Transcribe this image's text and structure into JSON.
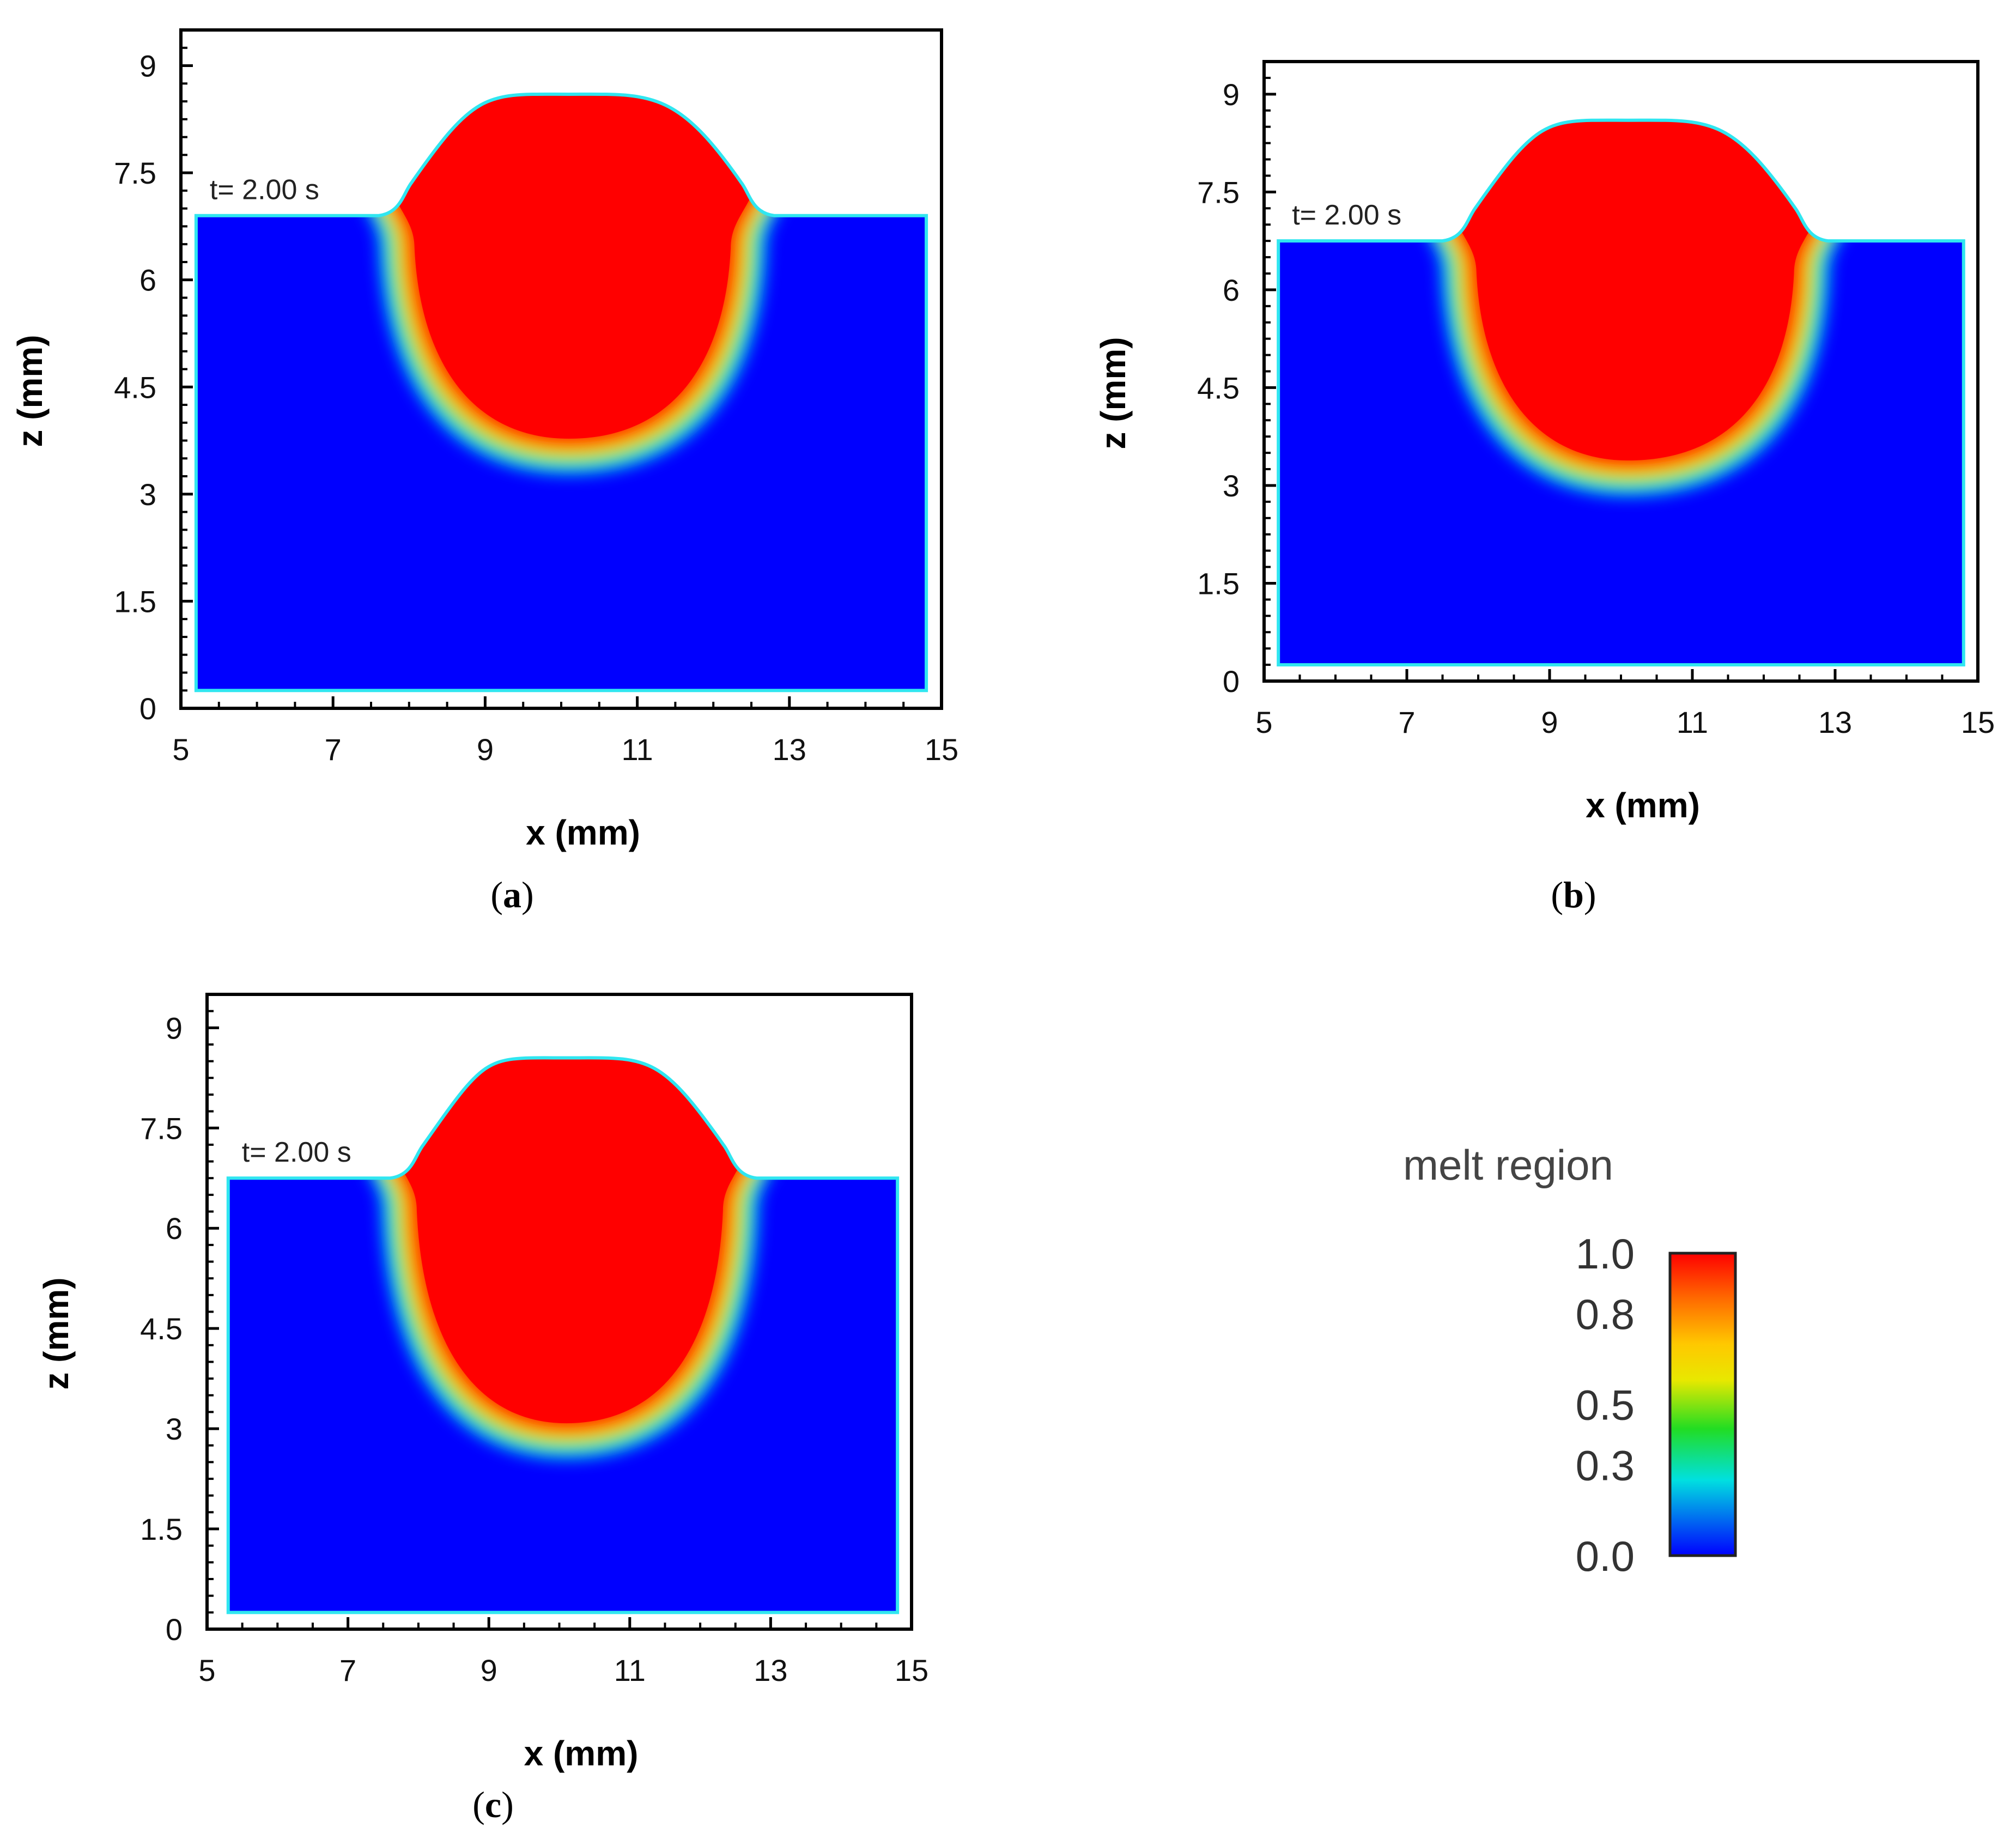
{
  "chart_data": [
    {
      "type": "heatmap",
      "panel": "(a)",
      "panel_letter": "a",
      "title": "",
      "time_label": "t= 2.00 s",
      "xlabel": "x (mm)",
      "ylabel": "z (mm)",
      "xlim": [
        5,
        15
      ],
      "ylim": [
        0,
        9.5
      ],
      "xticks": [
        5,
        7,
        9,
        11,
        13,
        15
      ],
      "yticks": [
        0,
        1.5,
        3,
        4.5,
        6,
        7.5,
        9
      ],
      "x_tick_labels": [
        "5",
        "7",
        "9",
        "11",
        "13",
        15
      ],
      "y_tick_labels": [
        "0",
        "1.5",
        "3",
        "4.5",
        "6",
        "7.5",
        "9"
      ],
      "domain": {
        "x_min": 5.2,
        "x_max": 14.8,
        "z_min": 0.25,
        "surface_z": 6.9
      },
      "bead": {
        "x_left": 7.6,
        "x_right": 12.8,
        "crown_z": 8.6,
        "center_x": 10.1
      },
      "melt_pool": {
        "x_left": 8.0,
        "x_right": 12.3,
        "bottom_z": 3.7,
        "center_x": 10.1
      }
    },
    {
      "type": "heatmap",
      "panel": "(b)",
      "panel_letter": "b",
      "title": "",
      "time_label": "t= 2.00 s",
      "xlabel": "x (mm)",
      "ylabel": "z (mm)",
      "xlim": [
        5,
        15
      ],
      "ylim": [
        0,
        9.5
      ],
      "xticks": [
        5,
        7,
        9,
        11,
        13,
        15
      ],
      "yticks": [
        0,
        1.5,
        3,
        4.5,
        6,
        7.5,
        9
      ],
      "x_tick_labels": [
        "5",
        "7",
        "9",
        "11",
        "13",
        "15"
      ],
      "y_tick_labels": [
        "0",
        "1.5",
        "3",
        "4.5",
        "6",
        "7.5",
        "9"
      ],
      "domain": {
        "x_min": 5.2,
        "x_max": 14.8,
        "z_min": 0.25,
        "surface_z": 6.75
      },
      "bead": {
        "x_left": 7.5,
        "x_right": 12.9,
        "crown_z": 8.6,
        "center_x": 10.1
      },
      "melt_pool": {
        "x_left": 7.9,
        "x_right": 12.5,
        "bottom_z": 3.3,
        "center_x": 10.1
      }
    },
    {
      "type": "heatmap",
      "panel": "(c)",
      "panel_letter": "c",
      "title": "",
      "time_label": "t= 2.00 s",
      "xlabel": "x (mm)",
      "ylabel": "z (mm)",
      "xlim": [
        5,
        15
      ],
      "ylim": [
        0,
        9.5
      ],
      "xticks": [
        5,
        7,
        9,
        11,
        13,
        15
      ],
      "yticks": [
        0,
        1.5,
        3,
        4.5,
        6,
        7.5,
        9
      ],
      "x_tick_labels": [
        "5",
        "7",
        "9",
        "11",
        "13",
        "15"
      ],
      "y_tick_labels": [
        "0",
        "1.5",
        "3",
        "4.5",
        "6",
        "7.5",
        "9"
      ],
      "domain": {
        "x_min": 5.3,
        "x_max": 14.8,
        "z_min": 0.25,
        "surface_z": 6.75
      },
      "bead": {
        "x_left": 7.6,
        "x_right": 12.8,
        "crown_z": 8.55,
        "center_x": 10.1
      },
      "melt_pool": {
        "x_left": 7.9,
        "x_right": 12.4,
        "bottom_z": 3.0,
        "center_x": 10.1
      }
    }
  ],
  "legend": {
    "title": "melt region",
    "ticks": [
      "1.0",
      "0.8",
      "0.5",
      "0.3",
      "0.0"
    ],
    "tick_values": [
      1.0,
      0.8,
      0.5,
      0.3,
      0.0
    ],
    "colors": [
      "#ff0000",
      "#ff8c00",
      "#e6e600",
      "#22dd22",
      "#00e0e0",
      "#0000ff"
    ]
  },
  "colors": {
    "solid": "#0000ff",
    "melt": "#ff0000",
    "mush_outer": "#00d8f0",
    "mush_mid1": "#1ee050",
    "mush_mid2": "#e8e800",
    "mush_inner": "#ff8c00",
    "surface_line": "#30e6f0"
  }
}
